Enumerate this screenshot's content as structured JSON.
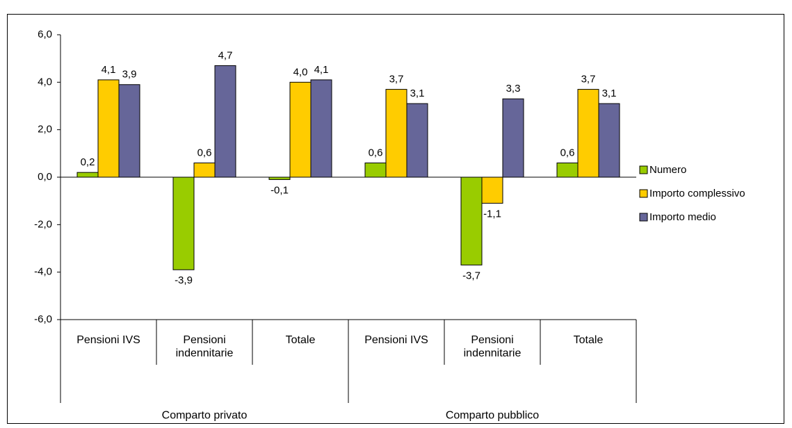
{
  "chart_data": {
    "type": "bar",
    "categories": [
      "Pensioni IVS",
      "Pensioni indennitarie",
      "Totale",
      "Pensioni IVS",
      "Pensioni indennitarie",
      "Totale"
    ],
    "groups": [
      "Comparto privato",
      "Comparto pubblico"
    ],
    "series": [
      {
        "name": "Numero",
        "color": "#99cc00",
        "values": [
          0.2,
          -3.9,
          -0.1,
          0.6,
          -3.7,
          0.6
        ],
        "value_labels": [
          "0,2",
          "-3,9",
          "-0,1",
          "0,6",
          "-3,7",
          "0,6"
        ]
      },
      {
        "name": "Importo complessivo",
        "color": "#ffcc00",
        "values": [
          4.1,
          0.6,
          4.0,
          3.7,
          -1.1,
          3.7
        ],
        "value_labels": [
          "4,1",
          "0,6",
          "4,0",
          "3,7",
          "-1,1",
          "3,7"
        ]
      },
      {
        "name": "Importo medio",
        "color": "#666699",
        "values": [
          3.9,
          4.7,
          4.1,
          3.1,
          3.3,
          3.1
        ],
        "value_labels": [
          "3,9",
          "4,7",
          "4,1",
          "3,1",
          "3,3",
          "3,1"
        ]
      }
    ],
    "ylim": [
      -6,
      6
    ],
    "yticks": [
      {
        "value": -6,
        "label": "-6,0"
      },
      {
        "value": -4,
        "label": "-4,0"
      },
      {
        "value": -2,
        "label": "-2,0"
      },
      {
        "value": 0,
        "label": "0,0"
      },
      {
        "value": 2,
        "label": "2,0"
      },
      {
        "value": 4,
        "label": "4,0"
      },
      {
        "value": 6,
        "label": "6,0"
      }
    ],
    "legend": "right"
  }
}
